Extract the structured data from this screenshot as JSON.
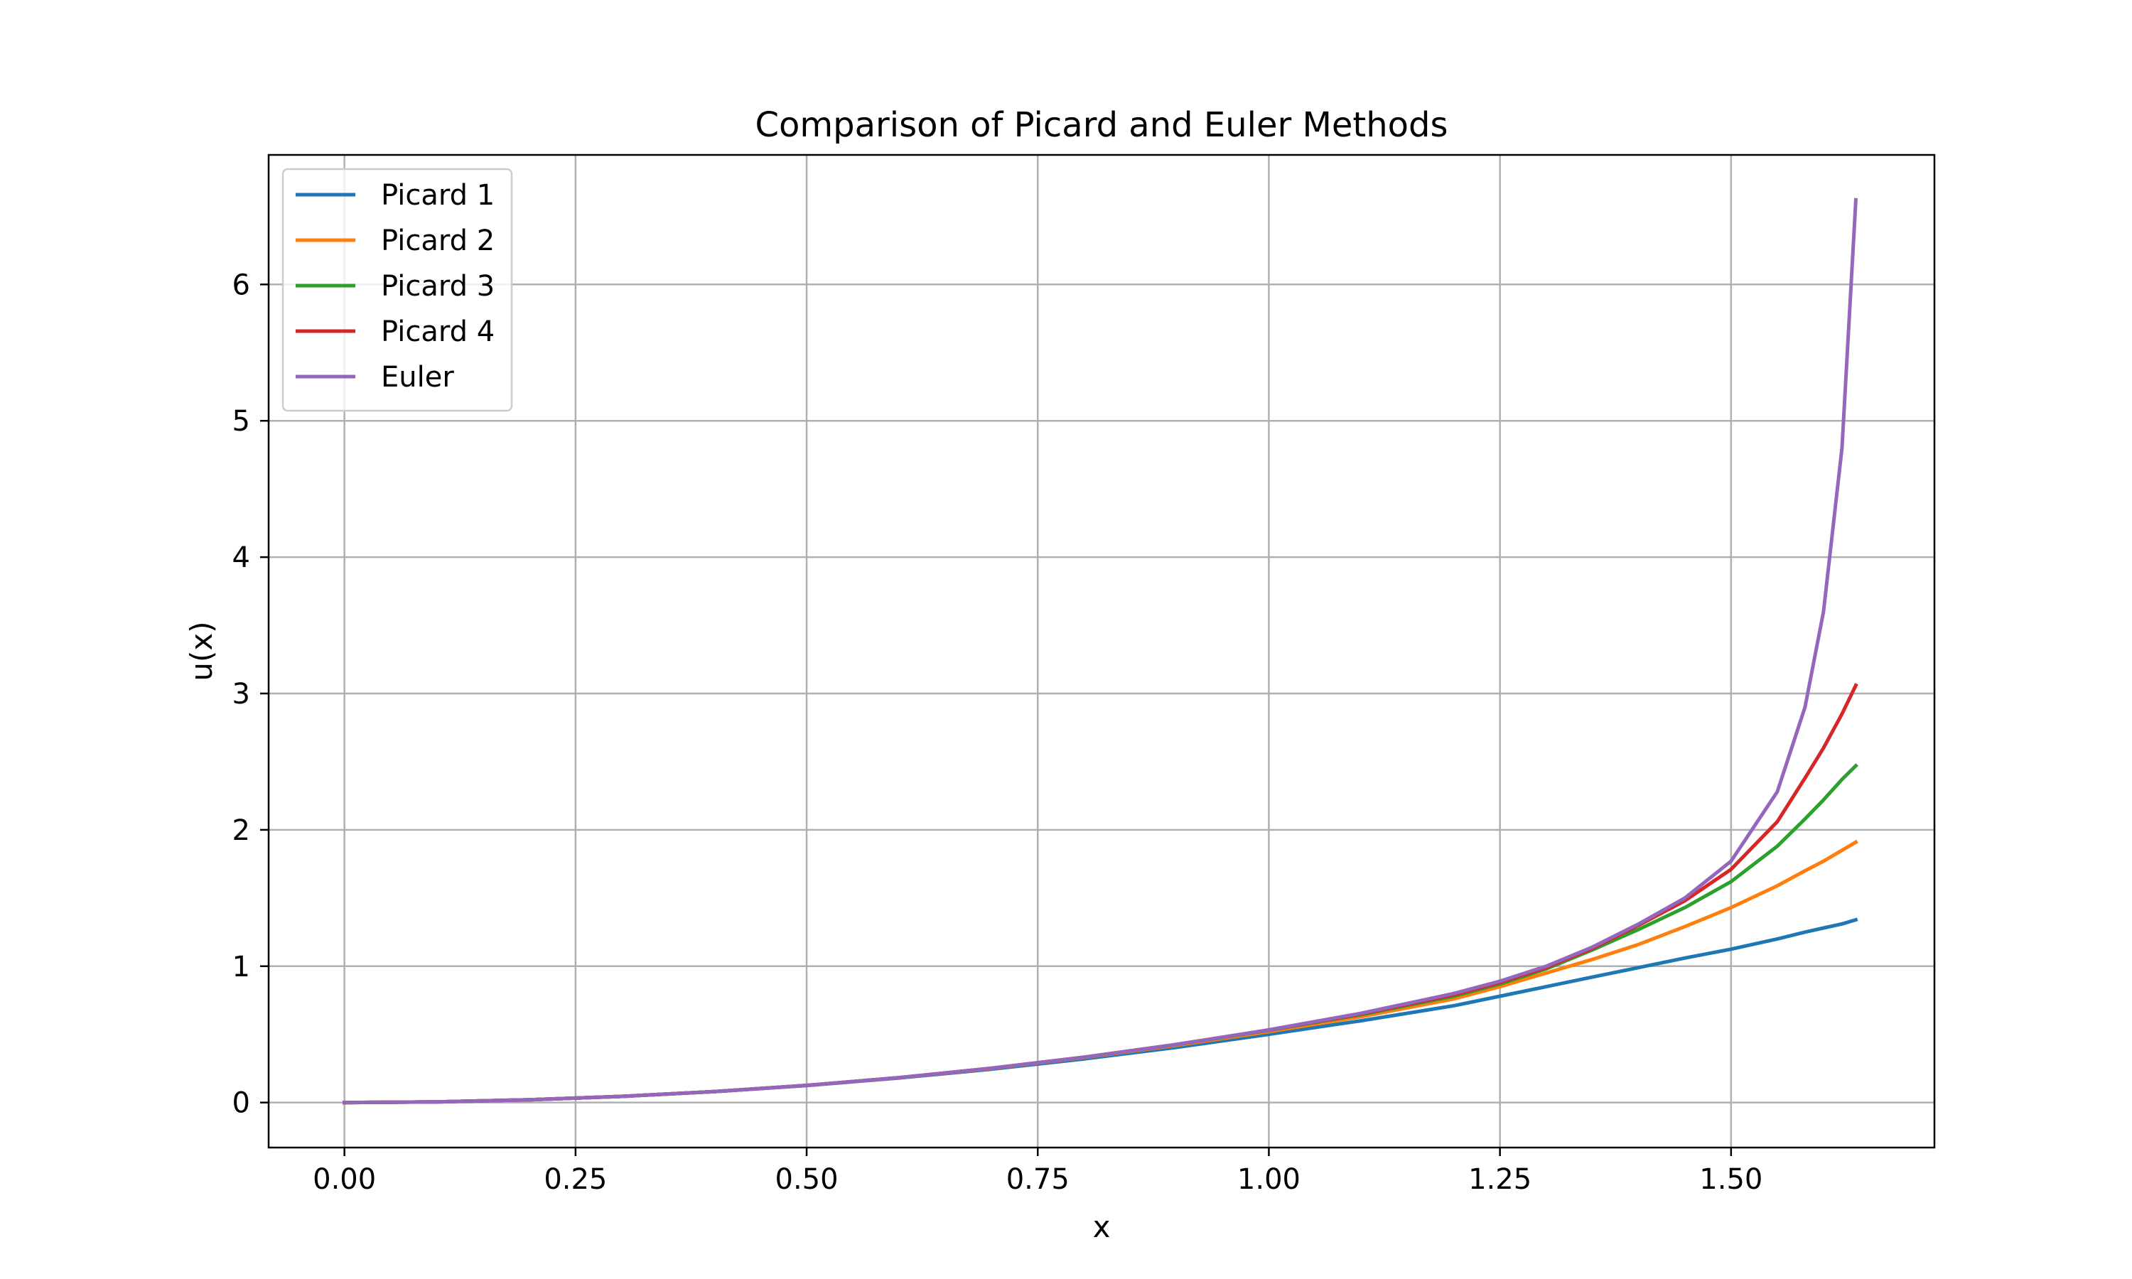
{
  "chart_data": {
    "type": "line",
    "title": "Comparison of Picard and Euler Methods",
    "xlabel": "x",
    "ylabel": "u(x)",
    "xlim": [
      -0.082,
      1.72
    ],
    "ylim": [
      -0.33,
      6.95
    ],
    "xticks": [
      0.0,
      0.25,
      0.5,
      0.75,
      1.0,
      1.25,
      1.5
    ],
    "xtick_labels": [
      "0.00",
      "0.25",
      "0.50",
      "0.75",
      "1.00",
      "1.25",
      "1.50"
    ],
    "yticks": [
      0,
      1,
      2,
      3,
      4,
      5,
      6
    ],
    "ytick_labels": [
      "0",
      "1",
      "2",
      "3",
      "4",
      "5",
      "6"
    ],
    "grid": true,
    "legend_position": "top-left",
    "x": [
      0.0,
      0.1,
      0.2,
      0.3,
      0.4,
      0.5,
      0.6,
      0.7,
      0.8,
      0.9,
      1.0,
      1.1,
      1.2,
      1.25,
      1.3,
      1.35,
      1.4,
      1.45,
      1.5,
      1.55,
      1.58,
      1.6,
      1.62,
      1.635
    ],
    "series": [
      {
        "name": "Picard 1",
        "color": "#1f77b4",
        "values": [
          0.0,
          0.005,
          0.02,
          0.045,
          0.08,
          0.125,
          0.18,
          0.245,
          0.32,
          0.405,
          0.5,
          0.6,
          0.71,
          0.78,
          0.85,
          0.92,
          0.99,
          1.06,
          1.125,
          1.2,
          1.25,
          1.28,
          1.31,
          1.34
        ]
      },
      {
        "name": "Picard 2",
        "color": "#ff7f0e",
        "values": [
          0.0,
          0.005,
          0.02,
          0.045,
          0.08,
          0.126,
          0.182,
          0.25,
          0.33,
          0.42,
          0.52,
          0.63,
          0.76,
          0.85,
          0.95,
          1.05,
          1.16,
          1.29,
          1.43,
          1.59,
          1.7,
          1.77,
          1.85,
          1.91
        ]
      },
      {
        "name": "Picard 3",
        "color": "#2ca02c",
        "values": [
          0.0,
          0.005,
          0.02,
          0.045,
          0.08,
          0.126,
          0.183,
          0.252,
          0.333,
          0.425,
          0.53,
          0.645,
          0.78,
          0.87,
          0.98,
          1.12,
          1.27,
          1.43,
          1.62,
          1.88,
          2.08,
          2.22,
          2.37,
          2.47
        ]
      },
      {
        "name": "Picard 4",
        "color": "#d62728",
        "values": [
          0.0,
          0.005,
          0.02,
          0.045,
          0.08,
          0.126,
          0.183,
          0.252,
          0.333,
          0.426,
          0.532,
          0.65,
          0.79,
          0.88,
          0.99,
          1.13,
          1.3,
          1.48,
          1.71,
          2.06,
          2.38,
          2.6,
          2.85,
          3.06
        ]
      },
      {
        "name": "Euler",
        "color": "#9467bd",
        "values": [
          0.0,
          0.005,
          0.02,
          0.045,
          0.08,
          0.126,
          0.183,
          0.252,
          0.333,
          0.426,
          0.533,
          0.655,
          0.8,
          0.89,
          1.0,
          1.14,
          1.31,
          1.5,
          1.77,
          2.28,
          2.9,
          3.6,
          4.8,
          6.62
        ]
      }
    ]
  }
}
